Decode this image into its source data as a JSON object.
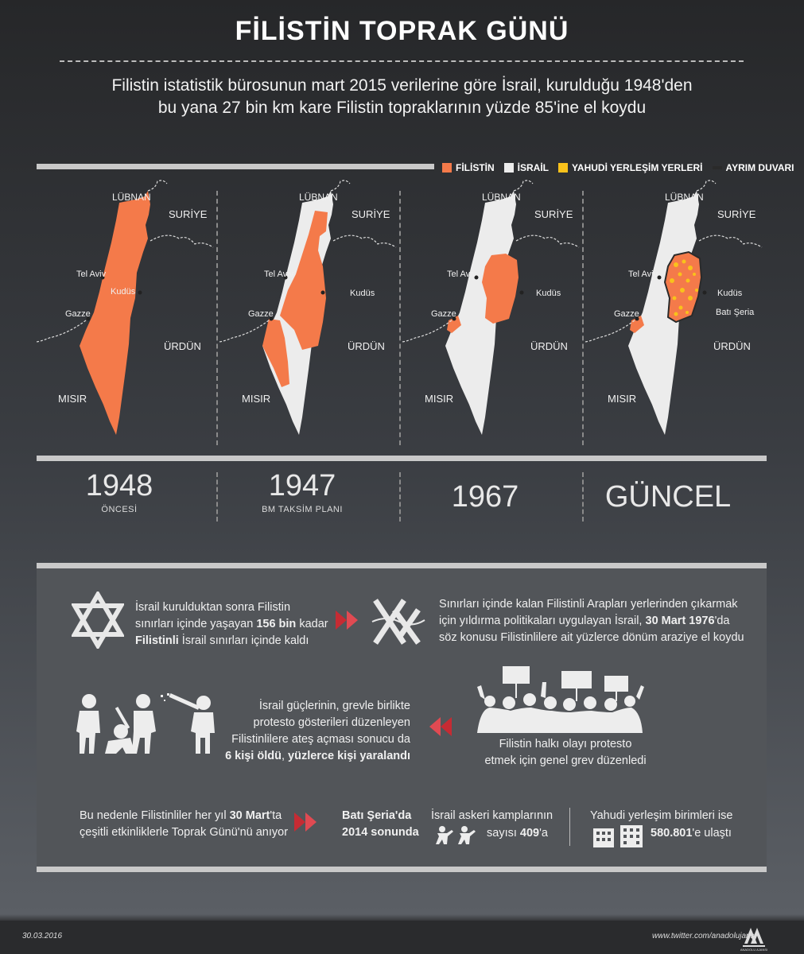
{
  "header": {
    "title": "FİLİSTİN TOPRAK GÜNÜ",
    "subtitle_line1": "Filistin istatistik bürosunun mart 2015 verilerine göre İsrail, kurulduğu 1948'den",
    "subtitle_line2": "bu yana 27 bin km kare Filistin topraklarının yüzde 85'ine el koydu"
  },
  "legend": {
    "palestine": "FİLİSTİN",
    "israel": "İSRAİL",
    "settlements": "YAHUDİ YERLEŞİM YERLERİ",
    "wall": "AYRIM DUVARI"
  },
  "colors": {
    "palestine": "#f47a4a",
    "israel": "#ececec",
    "settlements": "#f9c21b",
    "wall": "#2a2a2a"
  },
  "map_labels": {
    "lebanon": "LÜBNAN",
    "syria": "SURİYE",
    "jordan": "ÜRDÜN",
    "egypt": "MISIR",
    "telaviv": "Tel Aviv",
    "jerusalem": "Kudüs",
    "gaza": "Gazze",
    "westbank": "Batı Şeria"
  },
  "periods": [
    {
      "year": "1948",
      "sub": "ÖNCESİ"
    },
    {
      "year": "1947",
      "sub": "BM TAKSİM PLANI"
    },
    {
      "year": "1967",
      "sub": ""
    },
    {
      "year": "GÜNCEL",
      "sub": ""
    }
  ],
  "facts": {
    "f1_a": "İsrail kurulduktan sonra Filistin",
    "f1_b": "sınırları içinde yaşayan ",
    "f1_b_bold": "156 bin",
    "f1_b2": " kadar",
    "f1_c_bold": "Filistinli",
    "f1_c": " İsrail sınırları içinde kaldı",
    "f2_a": "Sınırları içinde kalan Filistinli Arapları yerlerinden çıkarmak",
    "f2_b": "için yıldırma politikaları uygulayan İsrail, ",
    "f2_b_bold": "30 Mart 1976",
    "f2_b2": "'da",
    "f2_c": "söz konusu Filistinlilere ait yüzlerce dönüm araziye el koydu",
    "f3_a": "Filistin halkı olayı protesto",
    "f3_b": "etmek için genel grev düzenledi",
    "f4_a": "İsrail güçlerinin, grevle birlikte",
    "f4_b": "protesto gösterileri düzenleyen",
    "f4_c": "Filistinlilere ateş açması sonucu da",
    "f4_d_bold": "6 kişi öldü",
    "f4_d2": ", ",
    "f4_d3_bold": "yüzlerce kişi yaralandı",
    "f5_a": "Bu nedenle Filistinliler her yıl ",
    "f5_a_bold": "30 Mart",
    "f5_a2": "'ta",
    "f5_b": "çeşitli etkinliklerle Toprak Günü'nü anıyor",
    "f6_a": "Batı Şeria'da",
    "f6_b": "2014 sonunda",
    "f7_a": "İsrail askeri kamplarının",
    "f7_b": "sayısı ",
    "f7_b_bold": "409",
    "f7_b2": "'a",
    "f8_a": "Yahudi yerleşim birimleri ise",
    "f8_b_bold": "580.801",
    "f8_b2": "'e ulaştı"
  },
  "footer": {
    "date": "30.03.2016",
    "twitter": "www.twitter.com/anadolujansi",
    "logo_text": "AA",
    "logo_sub": "ANADOLU AJANSI"
  }
}
